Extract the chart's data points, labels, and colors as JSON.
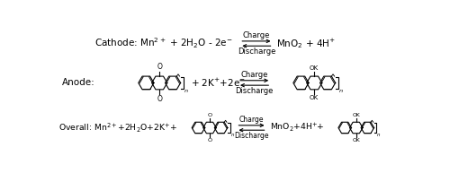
{
  "background_color": "#ffffff",
  "fig_width": 5.0,
  "fig_height": 1.93,
  "dpi": 100,
  "cathode_left": "Cathode: Mn$^{2+}$ + 2H$_2$O - 2e$^{-}$",
  "cathode_right": "MnO$_2$ + 4H$^{+}$",
  "anode_left": "Anode:",
  "anode_mid": "+ 2K$^{+}$+2e$^{-}$",
  "overall_left": "Overall: Mn$^{2+}$+2H$_2$O+2K$^{+}$+",
  "overall_right": "MnO$_2$+4H$^{+}$+",
  "charge_label": "Charge",
  "discharge_label": "Discharge",
  "text_color": "#000000",
  "font_size": 7.5,
  "small_font": 6.0
}
